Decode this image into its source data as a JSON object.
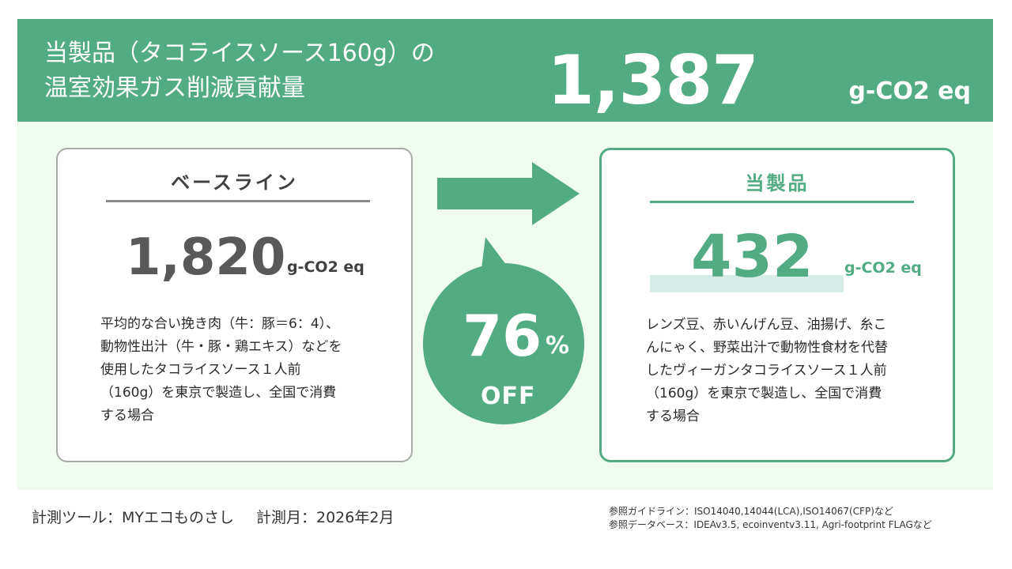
{
  "header": {
    "title_line1": "当製品（タコライスソース160g）の",
    "title_line2": "温室効果ガス削減貢献量",
    "value": "1,387",
    "unit": "g-CO2 eq"
  },
  "baseline": {
    "title": "ベースライン",
    "value": "1,820",
    "unit": "g-CO2 eq",
    "description": [
      "平均的な合い挽き肉（牛：豚＝6：4）、",
      "動物性出汁（牛・豚・鶏エキス）などを",
      "使用したタコライスソース１人前",
      "（160g）を東京で製造し、全国で消費",
      "する場合"
    ]
  },
  "product": {
    "title": "当製品",
    "value": "432",
    "unit": "g-CO2 eq",
    "description": [
      "レンズ豆、赤いんげん豆、油揚げ、糸こ",
      "んにゃく、野菜出汁で動物性食材を代替",
      "したヴィーガンタコライスソース１人前",
      "（160g）を東京で製造し、全国で消費",
      "する場合"
    ]
  },
  "reduction": {
    "value": "76",
    "unit": "%",
    "label": "OFF"
  },
  "footer": {
    "tool": "計測ツール：MYエコものさし",
    "month": "計測月：2026年2月",
    "guideline": "参照ガイドライン：ISO14040,14044(LCA),ISO14067(CFP)など",
    "database": "参照データベース：IDEAv3.5, ecoinventv3.11, Agri-footprint FLAGなど"
  },
  "colors": {
    "accent": "#52ab83",
    "panel_bg": "#f1fcf0",
    "baseline_text": "#595959"
  },
  "icons": {
    "arrow": "right-arrow-icon",
    "bubble": "speech-bubble-icon"
  }
}
